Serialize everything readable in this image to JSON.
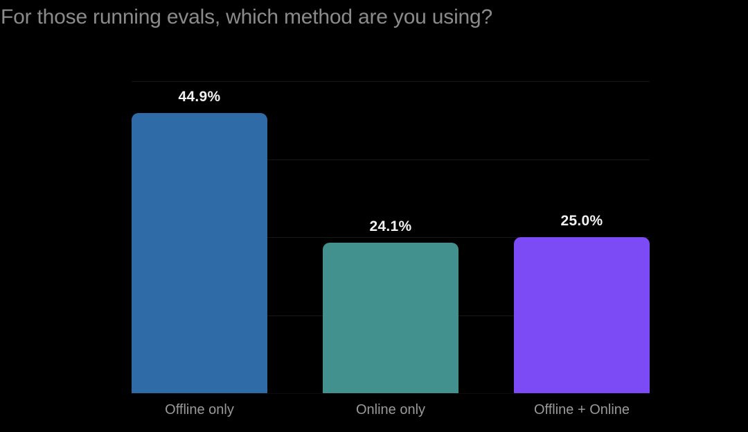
{
  "title": "For those running evals, which method are you using?",
  "colors": {
    "background": "#000000",
    "title_text": "#8b8b8b",
    "value_label_text": "#f1f1f1",
    "category_label_text": "#9a9a9a",
    "gridline": "rgba(255,255,255,0.09)"
  },
  "chart_data": {
    "type": "bar",
    "title": "For those running evals, which method are you using?",
    "categories": [
      "Offline only",
      "Online only",
      "Offline + Online"
    ],
    "values": [
      44.9,
      24.1,
      25.0
    ],
    "value_labels": [
      "44.9%",
      "24.1%",
      "25.0%"
    ],
    "bar_colors": [
      "#2f6ca7",
      "#43918f",
      "#7c4bf5"
    ],
    "xlabel": "",
    "ylabel": "",
    "ylim": [
      0,
      50
    ],
    "gridline_step": 12.5,
    "grid": "horizontal-only",
    "legend": "none",
    "value_labels_position": "above-bars",
    "background": "#000000"
  }
}
